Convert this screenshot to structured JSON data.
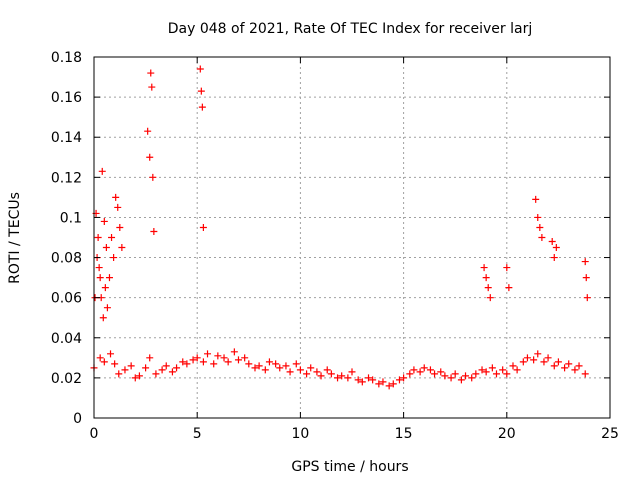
{
  "chart_data": {
    "type": "scatter",
    "title": "Day 048 of 2021, Rate Of TEC Index for receiver larj",
    "xlabel": "GPS time / hours",
    "ylabel": "ROTI / TECUs",
    "xlim": [
      0,
      25
    ],
    "ylim": [
      0,
      0.18
    ],
    "x_ticks": [
      0,
      5,
      10,
      15,
      20,
      25
    ],
    "x_tick_labels": [
      "0",
      "5",
      "10",
      "15",
      "20",
      "25"
    ],
    "y_ticks": [
      0,
      0.02,
      0.04,
      0.06,
      0.08,
      0.1,
      0.12,
      0.14,
      0.16,
      0.18
    ],
    "y_tick_labels": [
      "0",
      "0.02",
      "0.04",
      "0.06",
      "0.08",
      "0.1",
      "0.12",
      "0.14",
      "0.16",
      "0.18"
    ],
    "grid": true,
    "marker": "+",
    "color": "#ff0000",
    "series": [
      {
        "x": [
          0.0,
          0.3,
          0.5,
          0.8,
          1.0,
          1.2,
          1.5,
          1.8,
          2.0,
          2.2,
          2.5,
          2.7,
          3.0,
          3.3,
          3.5,
          3.8,
          4.0,
          4.3,
          4.5,
          4.8,
          5.0,
          5.3,
          5.5,
          5.8,
          6.0,
          6.3,
          6.5,
          6.8,
          7.0,
          7.3,
          7.5,
          7.8,
          8.0,
          8.3,
          8.5,
          8.8,
          9.0,
          9.3,
          9.5,
          9.8,
          10.0,
          10.3,
          10.5,
          10.8,
          11.0,
          11.3,
          11.5,
          11.8,
          12.0,
          12.3,
          12.5,
          12.8,
          13.0,
          13.3,
          13.5,
          13.8,
          14.0,
          14.3,
          14.5,
          14.8,
          15.0,
          15.3,
          15.5,
          15.8,
          16.0,
          16.3,
          16.5,
          16.8,
          17.0,
          17.3,
          17.5,
          17.8,
          18.0,
          18.3,
          18.5,
          18.8,
          19.0,
          19.3,
          19.5,
          19.8,
          20.0,
          20.3,
          20.5,
          20.8,
          21.0,
          21.3,
          21.5,
          21.8,
          22.0,
          22.3,
          22.5,
          22.8,
          23.0,
          23.3,
          23.5,
          23.8,
          0.1,
          0.2,
          0.3,
          0.4,
          0.5,
          0.6,
          0.05,
          0.15,
          0.25,
          0.35,
          0.45,
          0.55,
          0.65,
          0.75,
          0.85,
          0.95,
          1.05,
          1.15,
          1.25,
          1.35,
          2.6,
          2.7,
          2.75,
          2.8,
          2.85,
          2.9,
          5.15,
          5.2,
          5.25,
          5.3,
          18.9,
          19.0,
          19.1,
          19.2,
          20.0,
          20.1,
          21.4,
          21.5,
          21.6,
          21.7,
          22.2,
          22.3,
          22.4,
          23.8,
          23.85,
          23.9
        ],
        "y": [
          0.025,
          0.03,
          0.028,
          0.032,
          0.027,
          0.022,
          0.024,
          0.026,
          0.02,
          0.021,
          0.025,
          0.03,
          0.022,
          0.024,
          0.026,
          0.023,
          0.025,
          0.028,
          0.027,
          0.029,
          0.03,
          0.028,
          0.032,
          0.027,
          0.031,
          0.03,
          0.028,
          0.033,
          0.029,
          0.03,
          0.027,
          0.025,
          0.026,
          0.024,
          0.028,
          0.027,
          0.025,
          0.026,
          0.023,
          0.027,
          0.024,
          0.022,
          0.025,
          0.023,
          0.021,
          0.024,
          0.022,
          0.02,
          0.021,
          0.02,
          0.023,
          0.019,
          0.018,
          0.02,
          0.019,
          0.017,
          0.018,
          0.016,
          0.017,
          0.019,
          0.02,
          0.022,
          0.024,
          0.023,
          0.025,
          0.024,
          0.022,
          0.023,
          0.021,
          0.02,
          0.022,
          0.019,
          0.021,
          0.02,
          0.022,
          0.024,
          0.023,
          0.025,
          0.022,
          0.024,
          0.022,
          0.026,
          0.024,
          0.028,
          0.03,
          0.029,
          0.032,
          0.028,
          0.03,
          0.026,
          0.028,
          0.025,
          0.027,
          0.024,
          0.026,
          0.022,
          0.102,
          0.09,
          0.07,
          0.123,
          0.098,
          0.085,
          0.06,
          0.08,
          0.075,
          0.06,
          0.05,
          0.065,
          0.055,
          0.07,
          0.09,
          0.08,
          0.11,
          0.105,
          0.095,
          0.085,
          0.143,
          0.13,
          0.172,
          0.165,
          0.12,
          0.093,
          0.174,
          0.163,
          0.155,
          0.095,
          0.075,
          0.07,
          0.065,
          0.06,
          0.075,
          0.065,
          0.109,
          0.1,
          0.095,
          0.09,
          0.088,
          0.08,
          0.085,
          0.078,
          0.07,
          0.06
        ]
      }
    ]
  }
}
